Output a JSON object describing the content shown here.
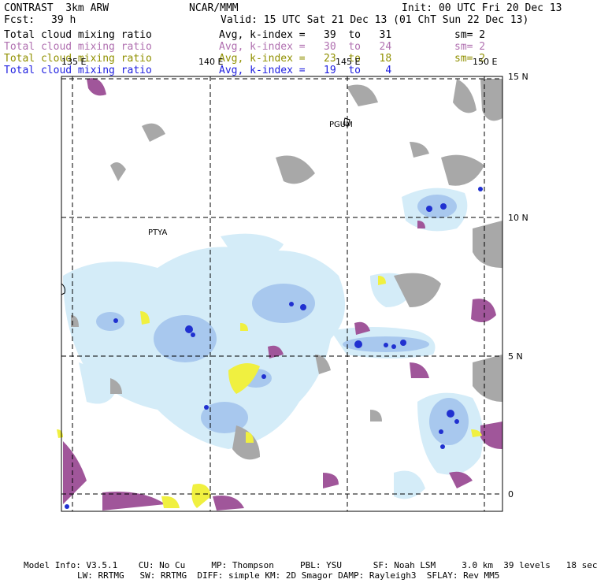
{
  "header": {
    "model": "CONTRAST  3km ARW",
    "institution": "NCAR/MMM",
    "init": "Init: 00 UTC Fri 20 Dec 13",
    "fcst_label": "Fcst:",
    "fcst_value": "39 h",
    "valid": "Valid: 15 UTC Sat 21 Dec 13 (01 ChT Sun 22 Dec 13)"
  },
  "fields": [
    {
      "name": "Total cloud mixing ratio",
      "range": "Avg, k-index =   39  to   31",
      "sm": "sm= 2",
      "color": "#000000"
    },
    {
      "name": "Total cloud mixing ratio",
      "range": "Avg, k-index =   30  to   24",
      "sm": "sm= 2",
      "color": "#b070b0"
    },
    {
      "name": "Total cloud mixing ratio",
      "range": "Avg, k-index =   23  to   18",
      "sm": "sm= 2",
      "color": "#909000"
    },
    {
      "name": "Total cloud mixing ratio",
      "range": "Avg, k-index =   19  to    4",
      "sm": "",
      "color": "#2020e0"
    }
  ],
  "map": {
    "lon_labels": [
      "135 E",
      "140 E",
      "145 E",
      "150 E"
    ],
    "lat_labels": [
      "15 N",
      "10 N",
      "5 N",
      "0"
    ],
    "stations": [
      "PGUM",
      "PTYA"
    ],
    "colors": {
      "low_cloud_gray": "#a8a8a8",
      "mid_cloud_purple": "#a0569a",
      "upper_cloud_yellow": "#f0f040",
      "high_cloud_lightblue": "#d4ecf8",
      "high_cloud_blue": "#2030d0"
    }
  },
  "footer": {
    "line1": "Model Info: V3.5.1    CU: No Cu     MP: Thompson     PBL: YSU      SF: Noah LSM     3.0 km  39 levels   18 sec",
    "line2": "LW: RRTMG   SW: RRTMG  DIFF: simple KM: 2D Smagor DAMP: Rayleigh3  SFLAY: Rev MM5"
  }
}
